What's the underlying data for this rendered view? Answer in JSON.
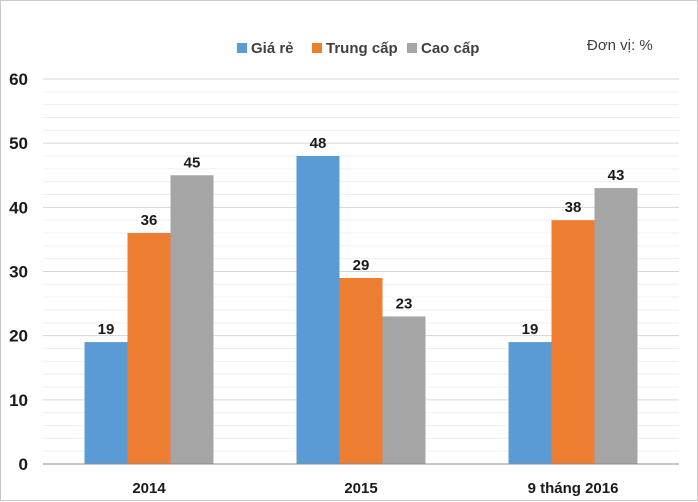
{
  "chart_data": {
    "type": "bar",
    "categories": [
      "2014",
      "2015",
      "9 tháng 2016"
    ],
    "series": [
      {
        "name": "Giá rẻ",
        "values": [
          19,
          48,
          19
        ],
        "color": "#5b9bd5"
      },
      {
        "name": "Trung cấp",
        "values": [
          36,
          29,
          38
        ],
        "color": "#ed7d31"
      },
      {
        "name": "Cao cấp",
        "values": [
          45,
          23,
          43
        ],
        "color": "#a5a5a5"
      }
    ],
    "unit_label": "Đơn vị: %",
    "ylim": [
      0,
      60
    ],
    "yticks": [
      0,
      10,
      20,
      30,
      40,
      50,
      60
    ],
    "grid": true,
    "legend_position": "top-center",
    "data_labels": true
  }
}
